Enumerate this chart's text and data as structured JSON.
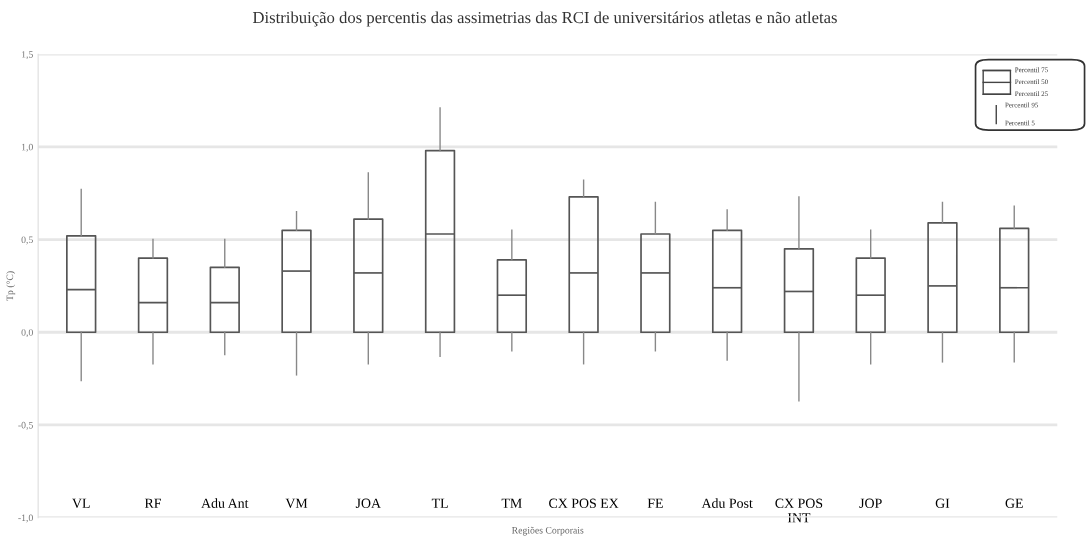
{
  "chart_data": {
    "type": "box",
    "title": "Distribuição dos percentis das assimetrias das RCI de universitários atletas e não atletas",
    "xlabel": "Regiões Corporais",
    "ylabel": "Tp (°C)",
    "categories": [
      "VL",
      "RF",
      "Adu Ant",
      "VM",
      "JOA",
      "TL",
      "TM",
      "CX POS EX",
      "FE",
      "Adu Post",
      "CX POS\nINT",
      "JOP",
      "GI",
      "GE"
    ],
    "boxes": [
      {
        "low": -0.26,
        "q1": 0.0,
        "median": 0.23,
        "q3": 0.52,
        "high": 0.77
      },
      {
        "low": -0.17,
        "q1": 0.0,
        "median": 0.16,
        "q3": 0.4,
        "high": 0.5
      },
      {
        "low": -0.12,
        "q1": 0.0,
        "median": 0.16,
        "q3": 0.35,
        "high": 0.5
      },
      {
        "low": -0.23,
        "q1": 0.0,
        "median": 0.33,
        "q3": 0.55,
        "high": 0.65
      },
      {
        "low": -0.17,
        "q1": 0.0,
        "median": 0.32,
        "q3": 0.61,
        "high": 0.86
      },
      {
        "low": -0.13,
        "q1": 0.0,
        "median": 0.53,
        "q3": 0.98,
        "high": 1.21
      },
      {
        "low": -0.1,
        "q1": 0.0,
        "median": 0.2,
        "q3": 0.39,
        "high": 0.55
      },
      {
        "low": -0.17,
        "q1": 0.0,
        "median": 0.32,
        "q3": 0.73,
        "high": 0.82
      },
      {
        "low": -0.1,
        "q1": 0.0,
        "median": 0.32,
        "q3": 0.53,
        "high": 0.7
      },
      {
        "low": -0.15,
        "q1": 0.0,
        "median": 0.24,
        "q3": 0.55,
        "high": 0.66
      },
      {
        "low": -0.37,
        "q1": 0.0,
        "median": 0.22,
        "q3": 0.45,
        "high": 0.73
      },
      {
        "low": -0.17,
        "q1": 0.0,
        "median": 0.2,
        "q3": 0.4,
        "high": 0.55
      },
      {
        "low": -0.16,
        "q1": 0.0,
        "median": 0.25,
        "q3": 0.59,
        "high": 0.7
      },
      {
        "low": -0.16,
        "q1": 0.0,
        "median": 0.24,
        "q3": 0.56,
        "high": 0.68
      }
    ],
    "ylim": [
      -1.0,
      1.5
    ],
    "yticks": [
      {
        "value": -1.0,
        "label": "-1,0"
      },
      {
        "value": -0.5,
        "label": "-0,5"
      },
      {
        "value": 0.0,
        "label": "0,0"
      },
      {
        "value": 0.5,
        "label": "0,5"
      },
      {
        "value": 1.0,
        "label": "1,0"
      },
      {
        "value": 1.5,
        "label": "1,5"
      }
    ],
    "grid": "y",
    "annotations": [
      "Percentil 75",
      "Percentil 50",
      "Percentil 25",
      "Percentil 95",
      "Percentil 5"
    ]
  }
}
